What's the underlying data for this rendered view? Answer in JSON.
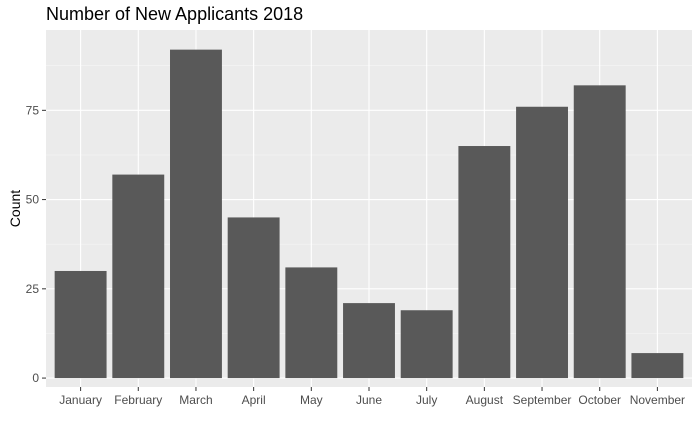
{
  "chart_data": {
    "type": "bar",
    "title": "Number of New Applicants 2018",
    "xlabel": "",
    "ylabel": "Count",
    "categories": [
      "January",
      "February",
      "March",
      "April",
      "May",
      "June",
      "July",
      "August",
      "September",
      "October",
      "November"
    ],
    "values": [
      30,
      57,
      92,
      45,
      31,
      21,
      19,
      65,
      76,
      82,
      7
    ],
    "y_ticks": [
      0,
      25,
      50,
      75
    ],
    "ylim": [
      -2.5,
      97.5
    ],
    "grid": true,
    "legend": "none",
    "colors": {
      "bar": "#595959",
      "panel": "#ebebeb",
      "grid_major": "#ffffff",
      "grid_minor": "#f5f5f5",
      "tick_text": "#4d4d4d"
    }
  }
}
